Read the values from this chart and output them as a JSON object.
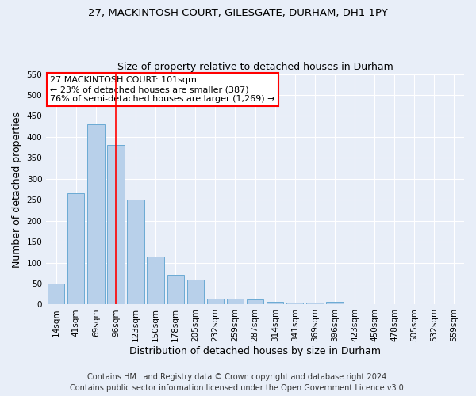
{
  "title_line1": "27, MACKINTOSH COURT, GILESGATE, DURHAM, DH1 1PY",
  "title_line2": "Size of property relative to detached houses in Durham",
  "xlabel": "Distribution of detached houses by size in Durham",
  "ylabel": "Number of detached properties",
  "bar_labels": [
    "14sqm",
    "41sqm",
    "69sqm",
    "96sqm",
    "123sqm",
    "150sqm",
    "178sqm",
    "205sqm",
    "232sqm",
    "259sqm",
    "287sqm",
    "314sqm",
    "341sqm",
    "369sqm",
    "396sqm",
    "423sqm",
    "450sqm",
    "478sqm",
    "505sqm",
    "532sqm",
    "559sqm"
  ],
  "bar_values": [
    50,
    265,
    430,
    380,
    250,
    115,
    70,
    60,
    15,
    15,
    12,
    7,
    5,
    5,
    6,
    0,
    0,
    1,
    0,
    0,
    1
  ],
  "bar_color": "#b8d0ea",
  "bar_edge_color": "#6aaad4",
  "property_line_x": 3.0,
  "annotation_text": "27 MACKINTOSH COURT: 101sqm\n← 23% of detached houses are smaller (387)\n76% of semi-detached houses are larger (1,269) →",
  "annotation_box_color": "white",
  "annotation_box_edge_color": "red",
  "vline_color": "red",
  "ylim": [
    0,
    550
  ],
  "yticks": [
    0,
    50,
    100,
    150,
    200,
    250,
    300,
    350,
    400,
    450,
    500,
    550
  ],
  "background_color": "#e8eef8",
  "footer_line1": "Contains HM Land Registry data © Crown copyright and database right 2024.",
  "footer_line2": "Contains public sector information licensed under the Open Government Licence v3.0.",
  "grid_color": "white",
  "title_fontsize": 9.5,
  "subtitle_fontsize": 9,
  "axis_label_fontsize": 9,
  "tick_fontsize": 7.5,
  "footer_fontsize": 7,
  "annot_fontsize": 8
}
